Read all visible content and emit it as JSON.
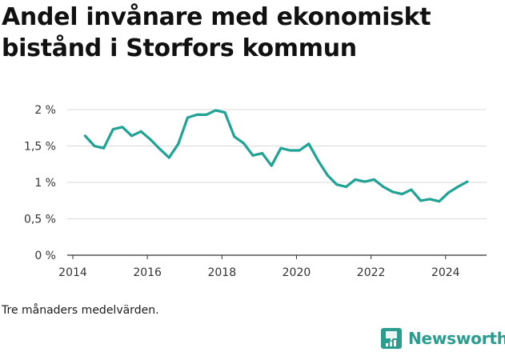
{
  "title": "Andel invånare med ekonomiskt bistånd i Storfors kommun",
  "note": "Tre månaders medelvärden.",
  "brand": {
    "name": "Newsworthy",
    "color": "#2a9d8f"
  },
  "chart_data": {
    "type": "line",
    "title": "Andel invånare med ekonomiskt bistånd i Storfors kommun",
    "xlabel": "",
    "ylabel": "",
    "xlim": [
      2013.85,
      2025.1
    ],
    "ylim": [
      0,
      2
    ],
    "x_ticks": [
      2014,
      2016,
      2018,
      2020,
      2022,
      2024
    ],
    "x_tick_labels": [
      "2014",
      "2016",
      "2018",
      "2020",
      "2022",
      "2024"
    ],
    "y_ticks": [
      0,
      0.5,
      1,
      1.5,
      2
    ],
    "y_tick_labels": [
      "0 %",
      "0,5 %",
      "1 %",
      "1,5 %",
      "2 %"
    ],
    "grid": "horizontal",
    "legend": "none",
    "series": [
      {
        "color": "#1fa394",
        "x": [
          2014.33,
          2014.58,
          2014.83,
          2015.08,
          2015.33,
          2015.58,
          2015.83,
          2016.08,
          2016.33,
          2016.58,
          2016.83,
          2017.08,
          2017.33,
          2017.58,
          2017.83,
          2018.08,
          2018.33,
          2018.58,
          2018.83,
          2019.08,
          2019.33,
          2019.58,
          2019.83,
          2020.08,
          2020.33,
          2020.58,
          2020.83,
          2021.08,
          2021.33,
          2021.58,
          2021.83,
          2022.08,
          2022.33,
          2022.58,
          2022.83,
          2023.08,
          2023.33,
          2023.58,
          2023.83,
          2024.08,
          2024.33,
          2024.58
        ],
        "values": [
          1.64,
          1.5,
          1.47,
          1.73,
          1.76,
          1.64,
          1.7,
          1.59,
          1.46,
          1.34,
          1.53,
          1.89,
          1.93,
          1.93,
          1.99,
          1.96,
          1.63,
          1.54,
          1.37,
          1.4,
          1.23,
          1.47,
          1.44,
          1.44,
          1.53,
          1.3,
          1.1,
          0.97,
          0.94,
          1.04,
          1.01,
          1.04,
          0.94,
          0.87,
          0.84,
          0.9,
          0.75,
          0.77,
          0.74,
          0.86,
          0.94,
          1.01
        ]
      }
    ]
  }
}
